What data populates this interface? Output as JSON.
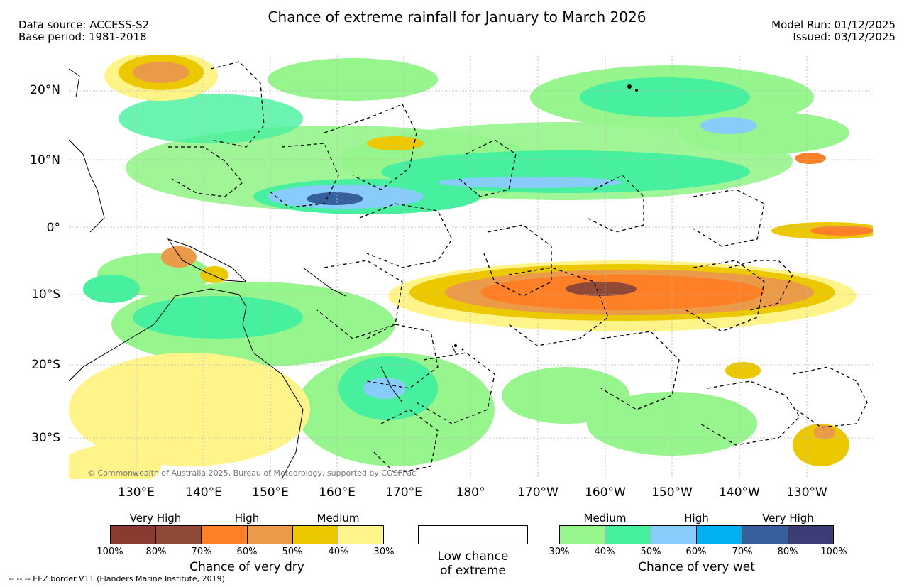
{
  "header": {
    "title": "Chance of extreme rainfall for January to March 2026",
    "data_source": "Data source: ACCESS-S2",
    "base_period": "Base period: 1981-2018",
    "model_run": "Model Run: 01/12/2025",
    "issued": "Issued: 03/12/2025"
  },
  "map": {
    "copyright": "© Commonwealth of Australia 2025, Bureau of Meteorology, supported by COSPPac",
    "lat_labels": [
      "20°N",
      "10°N",
      "0°",
      "10°S",
      "20°S",
      "30°S"
    ],
    "lon_labels": [
      "130°E",
      "140°E",
      "150°E",
      "160°E",
      "170°E",
      "180°",
      "170°W",
      "160°W",
      "150°W",
      "140°W",
      "130°W"
    ]
  },
  "legend": {
    "dry": {
      "categories": [
        "Very High",
        "High",
        "Medium"
      ],
      "ticks": [
        "100%",
        "80%",
        "70%",
        "60%",
        "50%",
        "40%",
        "30%"
      ],
      "colors": [
        "#8B3A2F",
        "#8E4A36",
        "#FF7F27",
        "#EB9A48",
        "#EBC800",
        "#FFF48A"
      ],
      "title": "Chance of very dry"
    },
    "neutral": {
      "line1": "Low chance",
      "line2": "of extreme"
    },
    "wet": {
      "categories": [
        "Medium",
        "High",
        "Very High"
      ],
      "ticks": [
        "30%",
        "40%",
        "50%",
        "60%",
        "70%",
        "80%",
        "100%"
      ],
      "colors": [
        "#96F58C",
        "#46F09E",
        "#87CCFA",
        "#00B0F0",
        "#35609D",
        "#3C3C78"
      ],
      "title": "Chance of very wet"
    }
  },
  "footer": {
    "eez_note": "--  --  -- EEZ border V11 (Flanders Marine Institute, 2019)."
  }
}
